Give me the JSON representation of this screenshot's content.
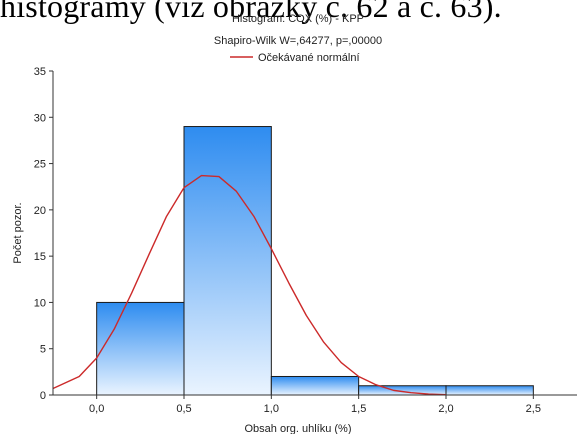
{
  "page": {
    "caption_above": "histogramy (viz obrázky č. 62 a č. 63)."
  },
  "chart_data": {
    "type": "bar",
    "title": "Histogram: COX (%) - KPP",
    "subtitle": "Shapiro-Wilk W=,64277, p=,00000",
    "legend": [
      {
        "label": "Očekávané normální",
        "color": "#cc2a2a",
        "style": "line"
      }
    ],
    "legend_position": "top",
    "xlabel": "Obsah org. uhlíku (%)",
    "ylabel": "Počet pozor.",
    "xlim": [
      -0.25,
      2.75
    ],
    "ylim": [
      0,
      35
    ],
    "x_ticks": [
      0.0,
      0.5,
      1.0,
      1.5,
      2.0,
      2.5
    ],
    "x_tick_labels": [
      "0,0",
      "0,5",
      "1,0",
      "1,5",
      "2,0",
      "2,5"
    ],
    "y_ticks": [
      0,
      5,
      10,
      15,
      20,
      25,
      30,
      35
    ],
    "y_tick_labels": [
      "0",
      "5",
      "10",
      "15",
      "20",
      "25",
      "30",
      "35"
    ],
    "bins": [
      {
        "from": 0.0,
        "to": 0.5,
        "count": 10
      },
      {
        "from": 0.5,
        "to": 1.0,
        "count": 29
      },
      {
        "from": 1.0,
        "to": 1.5,
        "count": 2
      },
      {
        "from": 1.5,
        "to": 2.0,
        "count": 1
      },
      {
        "from": 2.0,
        "to": 2.5,
        "count": 1
      }
    ],
    "expected_normal_curve": {
      "name": "Očekávané normální",
      "color": "#cc2a2a",
      "x": [
        -0.25,
        -0.1,
        0.0,
        0.1,
        0.2,
        0.3,
        0.4,
        0.5,
        0.6,
        0.7,
        0.8,
        0.9,
        1.0,
        1.1,
        1.2,
        1.3,
        1.4,
        1.5,
        1.6,
        1.7,
        1.8,
        1.9,
        2.0
      ],
      "y": [
        0.7,
        2.0,
        4.0,
        7.1,
        11.0,
        15.2,
        19.3,
        22.4,
        23.7,
        23.6,
        22.0,
        19.3,
        15.8,
        12.1,
        8.6,
        5.7,
        3.5,
        2.0,
        1.1,
        0.5,
        0.25,
        0.1,
        0.03
      ]
    },
    "bar_fill_top": "#2e8cf0",
    "bar_fill_bottom": "#eaf4ff",
    "bar_stroke": "#1a1a1a",
    "grid": false
  }
}
